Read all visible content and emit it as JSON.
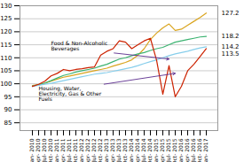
{
  "chart_data": {
    "type": "line",
    "categories": [
      "Jan-\n2010",
      "Apr-\n2010",
      "Jul-\n2010",
      "Oct-\n2010",
      "Jan-\n2011",
      "Apr-\n2011",
      "Jul-\n2011",
      "Oct-\n2011",
      "Jan-\n2012",
      "Apr-\n2012",
      "Jul-\n2012",
      "Oct-\n2012",
      "Jan-\n2013",
      "Apr-\n2013",
      "Jul-\n2013",
      "Oct-\n2013",
      "Jan-\n2014",
      "Apr-\n2014",
      "Jul-\n2014",
      "Oct-\n2014",
      "Jan-\n2015",
      "Apr-\n2015",
      "Jul-\n2015",
      "Oct-\n2015",
      "Jan-\n2016",
      "Apr-\n2016",
      "Jul-\n2016",
      "Oct-\n2016",
      "Jan-\n2017"
    ],
    "series": [
      {
        "color": "#DAA520",
        "values": [
          99.3,
          99.7,
          100.2,
          101.0,
          101.8,
          102.5,
          103.0,
          103.5,
          104.0,
          104.5,
          105.0,
          105.5,
          106.0,
          106.8,
          107.5,
          108.2,
          109.2,
          111.0,
          113.5,
          117.0,
          119.5,
          121.5,
          123.0,
          120.5,
          121.0,
          122.5,
          124.0,
          125.5,
          127.2
        ]
      },
      {
        "color": "#3CB371",
        "values": [
          99.2,
          99.6,
          100.3,
          101.2,
          102.2,
          103.2,
          103.8,
          104.5,
          105.0,
          105.5,
          106.0,
          106.8,
          107.5,
          108.5,
          109.5,
          110.0,
          110.8,
          111.5,
          112.0,
          112.8,
          113.5,
          114.0,
          115.0,
          116.0,
          116.5,
          117.0,
          117.5,
          118.0,
          118.2
        ]
      },
      {
        "color": "#87CEEB",
        "values": [
          99.0,
          99.4,
          99.8,
          100.2,
          100.7,
          101.2,
          101.7,
          102.2,
          102.7,
          103.2,
          103.7,
          104.0,
          104.3,
          104.8,
          105.3,
          105.8,
          106.3,
          107.0,
          107.8,
          108.5,
          109.2,
          110.0,
          110.8,
          111.5,
          112.0,
          112.5,
          113.2,
          113.8,
          114.2
        ]
      },
      {
        "color": "#CC2200",
        "values": [
          99.0,
          99.8,
          101.0,
          103.0,
          104.0,
          105.5,
          105.0,
          105.5,
          105.8,
          106.2,
          106.5,
          111.0,
          112.5,
          113.5,
          116.5,
          116.0,
          113.5,
          115.0,
          116.5,
          117.5,
          109.0,
          96.0,
          107.0,
          95.0,
          99.0,
          105.0,
          107.5,
          110.5,
          113.5
        ]
      }
    ],
    "ylim": [
      82,
      130
    ],
    "yticks": [
      85,
      90,
      95,
      100,
      105,
      110,
      115,
      120,
      125,
      130
    ],
    "y2lim": [
      82,
      130
    ],
    "y2ticks": [
      127.2,
      118.2,
      114.2,
      113.5
    ],
    "grid": true,
    "annotations": [
      {
        "text": "Food & Non-Alcoholic\nBeverages",
        "x": "Oct-\n2010",
        "y": 114.5,
        "arrow_x": "Jul-\n2015",
        "arrow_y": 109.5,
        "color": "#5B2C8D"
      },
      {
        "text": "Housing, Water,\nElectricity, Gas & Other\nFuels",
        "x": "Apr-\n2010",
        "y": 96.0,
        "arrow_x": "Oct-\n2015",
        "arrow_y": 104.0,
        "color": "#5B2C8D"
      }
    ]
  }
}
